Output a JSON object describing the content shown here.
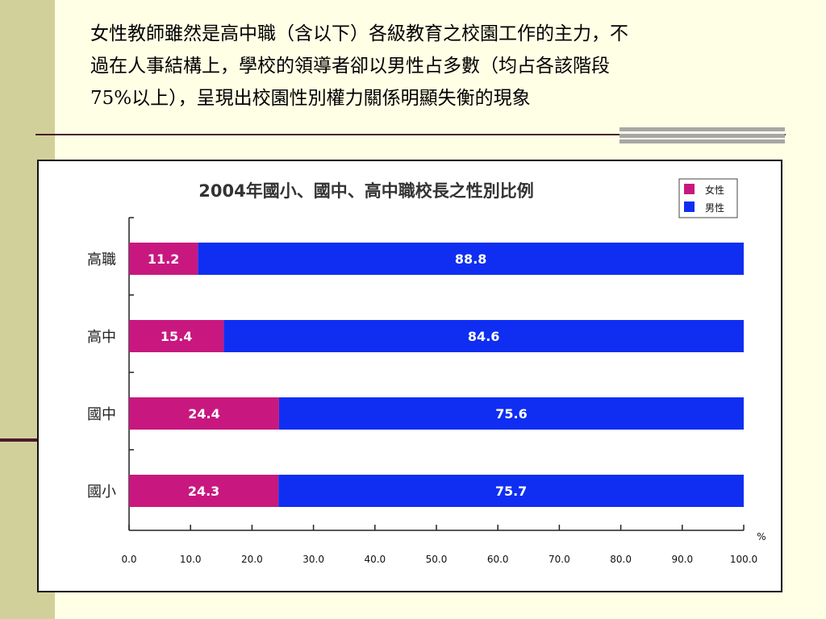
{
  "slide": {
    "title": "女性教師雖然是高中職（含以下）各級教育之校園工作的主力，不\n過在人事結構上，學校的領導者卻以男性占多數（均占各該階段\n75%以上），呈現出校園性別權力關係明顯失衡的現象"
  },
  "colors": {
    "female": "#c8187f",
    "male": "#0f2ef2",
    "background": "#ffffe6",
    "sidebar": "#d2d09a",
    "rule": "#4b1a2a"
  },
  "chart_data": {
    "type": "bar",
    "orientation": "horizontal",
    "stacked": true,
    "title": "2004年國小、國中、高中職校長之性別比例",
    "categories": [
      "高職",
      "高中",
      "國中",
      "國小"
    ],
    "series": [
      {
        "name": "女性",
        "values": [
          11.2,
          15.4,
          24.4,
          24.3
        ]
      },
      {
        "name": "男性",
        "values": [
          88.8,
          84.6,
          75.6,
          75.7
        ]
      }
    ],
    "xunit": "%",
    "xlim": [
      0,
      100
    ],
    "xticks": [
      "0.0",
      "10.0",
      "20.0",
      "30.0",
      "40.0",
      "50.0",
      "60.0",
      "70.0",
      "80.0",
      "90.0",
      "100.0"
    ],
    "data_labels": true,
    "legend_position": "top-right",
    "grid": false
  }
}
